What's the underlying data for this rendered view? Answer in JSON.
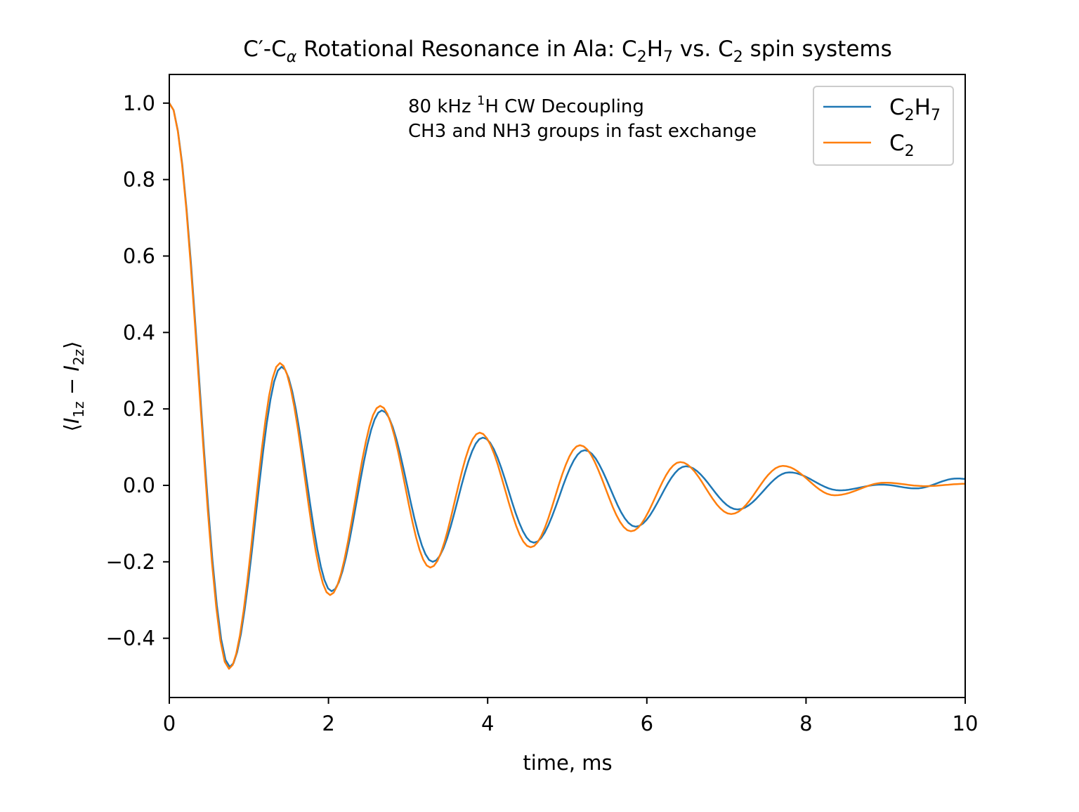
{
  "chart_data": {
    "type": "line",
    "title": "C′-Cα Rotational Resonance in Ala: C2H7 vs. C2 spin systems",
    "title_parts": {
      "a": "C′-C",
      "a_sub": "α",
      "b": " Rotational Resonance in Ala: C",
      "b_sub": "2",
      "c": "H",
      "c_sub": "7",
      "d": " vs. C",
      "d_sub": "2",
      "e": " spin systems"
    },
    "xlabel": "time, ms",
    "ylabel": {
      "open": "⟨",
      "i1": "I",
      "s1": "1z",
      "minus": " − ",
      "i2": "I",
      "s2": "2z",
      "close": "⟩"
    },
    "xlim": [
      0,
      10
    ],
    "ylim": [
      -0.555,
      1.075
    ],
    "xticks": [
      "0",
      "2",
      "4",
      "6",
      "8",
      "10"
    ],
    "yticks": [
      "−0.4",
      "−0.2",
      "0.0",
      "0.2",
      "0.4",
      "0.6",
      "0.8",
      "1.0"
    ],
    "grid": false,
    "annotation": {
      "line1_a": "80 kHz ",
      "line1_sup": "1",
      "line1_b": "H CW Decoupling",
      "line2": "CH3 and NH3 groups in fast exchange"
    },
    "legend": {
      "placement": "top-right"
    },
    "series": [
      {
        "name": "C2H7",
        "name_main": "C",
        "name_sub1": "2",
        "name_mid": "H",
        "name_sub2": "7",
        "color": "#1f77b4",
        "x": [
          0,
          0.76,
          1.41,
          2.04,
          2.67,
          3.31,
          3.94,
          4.58,
          5.22,
          5.86,
          6.49,
          7.14,
          7.79,
          8.42,
          8.95,
          9.38,
          9.9,
          10
        ],
        "y": [
          1.0,
          -0.475,
          0.31,
          -0.277,
          0.196,
          -0.2,
          0.125,
          -0.15,
          0.092,
          -0.108,
          0.05,
          -0.063,
          0.034,
          -0.013,
          0.002,
          -0.008,
          0.018,
          0.017
        ]
      },
      {
        "name": "C2",
        "name_main": "C",
        "name_sub1": "2",
        "color": "#ff7f0e",
        "x": [
          0,
          0.75,
          1.39,
          2.02,
          2.65,
          3.28,
          3.9,
          4.54,
          5.16,
          5.8,
          6.42,
          7.06,
          7.71,
          8.36,
          8.99,
          9.5,
          10
        ],
        "y": [
          1.0,
          -0.48,
          0.32,
          -0.287,
          0.208,
          -0.215,
          0.138,
          -0.162,
          0.105,
          -0.12,
          0.061,
          -0.075,
          0.051,
          -0.026,
          0.007,
          -0.002,
          0.004
        ]
      }
    ]
  }
}
